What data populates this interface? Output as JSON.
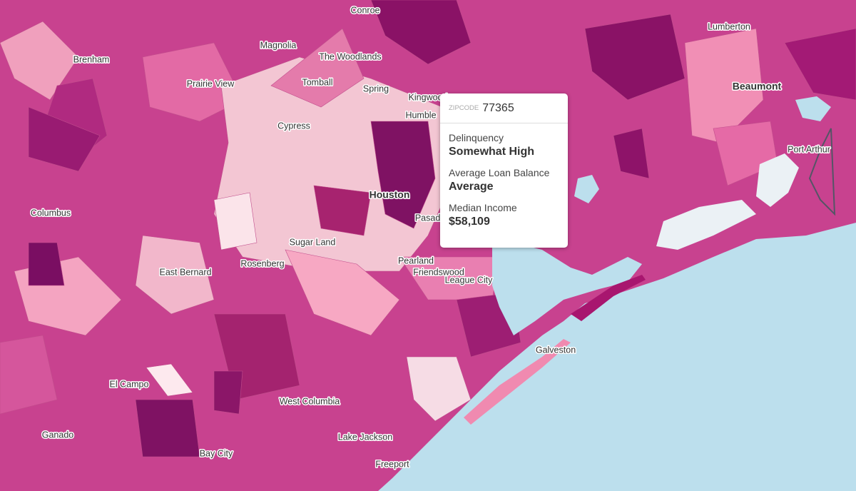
{
  "places": [
    "Conroe",
    "Lumberton",
    "Brenham",
    "Magnolia",
    "The Woodlands",
    "Prairie View",
    "Tomball",
    "Spring",
    "Kingwood",
    "Humble",
    "Beaumont",
    "Cypress",
    "Houston",
    "Port Arthur",
    "Columbus",
    "Pasadena",
    "Sugar Land",
    "Rosenberg",
    "Pearland",
    "Friendswood",
    "League City",
    "East Bernard",
    "Galveston",
    "El Campo",
    "West Columbia",
    "Lake Jackson",
    "Ganado",
    "Bay City",
    "Freeport"
  ],
  "tooltip": {
    "key_label": "ZIPCODE",
    "key": "77365",
    "rows": [
      {
        "label": "Delinquency",
        "value": "Somewhat High"
      },
      {
        "label": "Average Loan Balance",
        "value": "Average"
      },
      {
        "label": "Median Income",
        "value": "$58,109"
      }
    ]
  }
}
